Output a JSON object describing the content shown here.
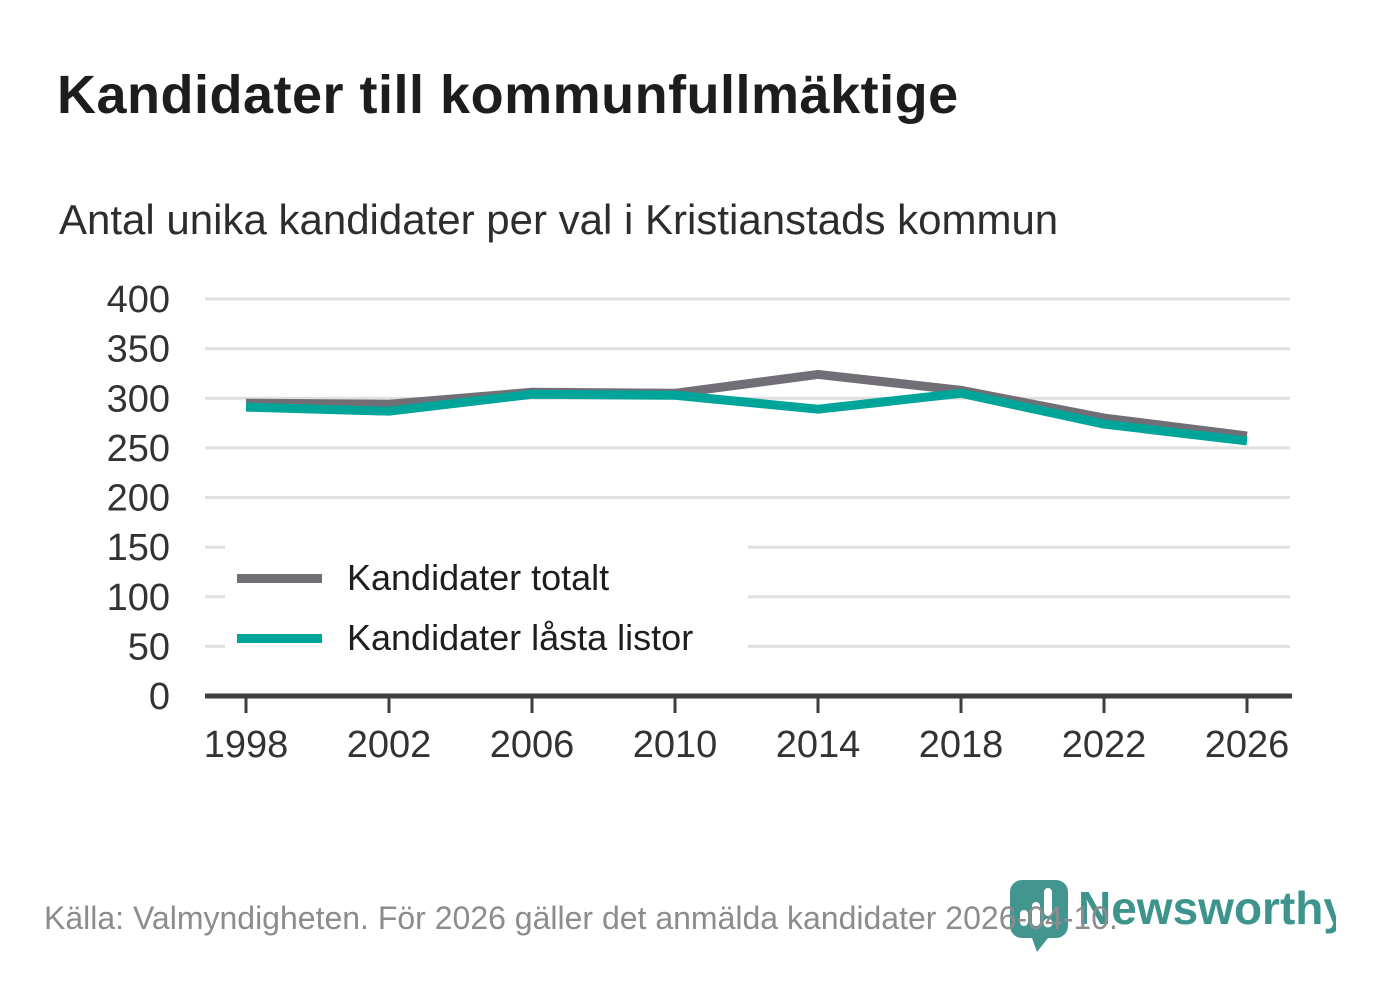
{
  "title": "Kandidater till kommunfullmäktige",
  "subtitle": "Antal unika kandidater per val i Kristianstads kommun",
  "footer": {
    "source_note": "Källa: Valmyndigheten. För 2026 gäller det anmälda kandidater 2026-04-10."
  },
  "branding": {
    "logo_text": "Newsworthy",
    "logo_icon": "map-pin-bar-chart-icon",
    "logo_color": "#3d948d"
  },
  "colors": {
    "series_total": "#716e76",
    "series_locked": "#00a59a",
    "grid": "#e0e0e0",
    "axis": "#3e3e3e",
    "tick_label": "#333333",
    "title_text": "#1d1d1d",
    "footer_text": "#8c8c8c"
  },
  "chart_data": {
    "type": "line",
    "title": "Kandidater till kommunfullmäktige",
    "subtitle": "Antal unika kandidater per val i Kristianstads kommun",
    "x": [
      1998,
      2002,
      2006,
      2010,
      2014,
      2018,
      2022,
      2026
    ],
    "x_tick_labels": [
      "1998",
      "2002",
      "2006",
      "2010",
      "2014",
      "2018",
      "2022",
      "2026"
    ],
    "series": [
      {
        "name": "Kandidater totalt",
        "color": "#716e76",
        "values": [
          295,
          294,
          306,
          305,
          324,
          308,
          280,
          262
        ]
      },
      {
        "name": "Kandidater låsta listor",
        "color": "#00a59a",
        "values": [
          291,
          287,
          304,
          303,
          289,
          305,
          274,
          257
        ]
      }
    ],
    "ylim": [
      0,
      400
    ],
    "yticks": [
      0,
      50,
      100,
      150,
      200,
      250,
      300,
      350,
      400
    ],
    "xlabel": "",
    "ylabel": "",
    "grid": true,
    "legend_position": "inside-bottom-left"
  }
}
